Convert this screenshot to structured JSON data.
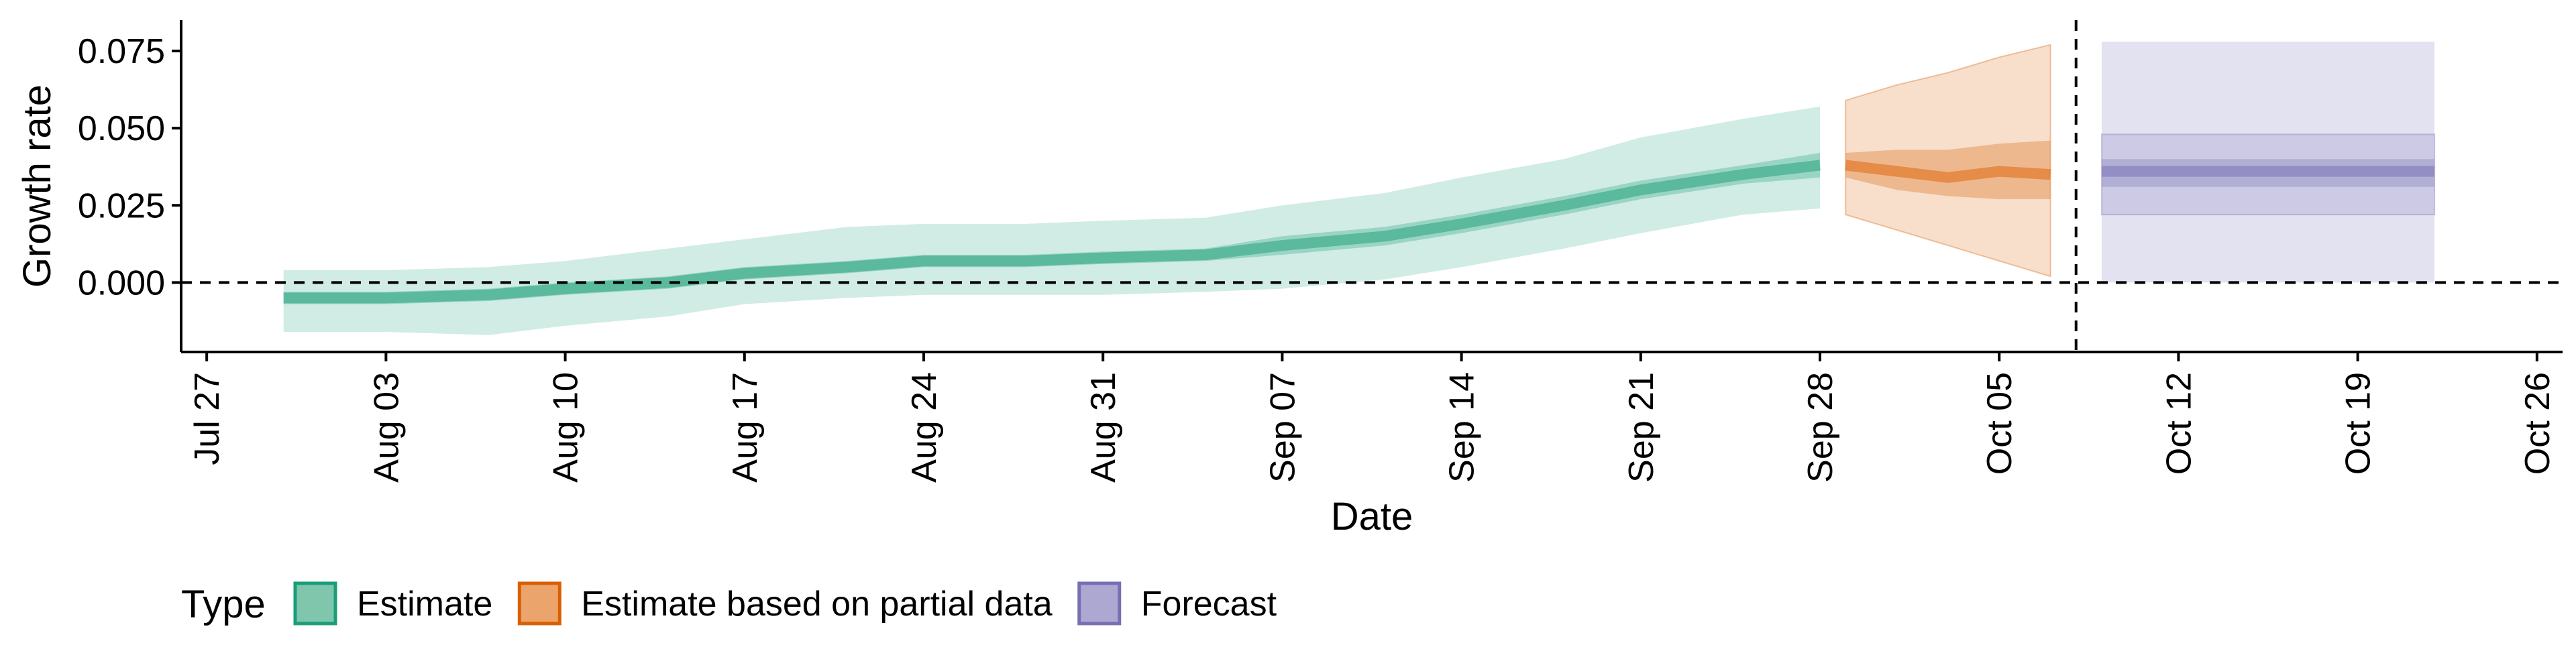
{
  "chart_data": {
    "type": "area",
    "xlabel": "Date",
    "ylabel": "Growth rate",
    "xlim": [
      "2020-07-26",
      "2020-10-27"
    ],
    "ylim": [
      -0.0225,
      0.085
    ],
    "x_ticks": [
      "2020-07-27",
      "2020-08-03",
      "2020-08-10",
      "2020-08-17",
      "2020-08-24",
      "2020-08-31",
      "2020-09-07",
      "2020-09-14",
      "2020-09-21",
      "2020-09-28",
      "2020-10-05",
      "2020-10-12",
      "2020-10-19",
      "2020-10-26"
    ],
    "x_tick_labels": [
      "Jul 27",
      "Aug 03",
      "Aug 10",
      "Aug 17",
      "Aug 24",
      "Aug 31",
      "Sep 07",
      "Sep 14",
      "Sep 21",
      "Sep 28",
      "Oct 05",
      "Oct 12",
      "Oct 19",
      "Oct 26"
    ],
    "y_ticks": [
      0.0,
      0.025,
      0.05,
      0.075
    ],
    "y_tick_labels": [
      "0.000",
      "0.025",
      "0.050",
      "0.075"
    ],
    "hline": 0,
    "vline": "2020-10-08",
    "grid": false,
    "legend": {
      "title": "Type",
      "position": "bottom-left",
      "entries": [
        {
          "label": "Estimate",
          "fill": "#7fc6ad",
          "stroke": "#1b9e77"
        },
        {
          "label": "Estimate based on partial data",
          "fill": "#eba46b",
          "stroke": "#d95f02"
        },
        {
          "label": "Forecast",
          "fill": "#ada8d1",
          "stroke": "#7570b3"
        }
      ]
    },
    "series": [
      {
        "name": "Estimate",
        "color": "#1b9e77",
        "x": [
          "2020-07-30",
          "2020-08-03",
          "2020-08-07",
          "2020-08-10",
          "2020-08-14",
          "2020-08-17",
          "2020-08-21",
          "2020-08-24",
          "2020-08-28",
          "2020-08-31",
          "2020-09-04",
          "2020-09-07",
          "2020-09-11",
          "2020-09-14",
          "2020-09-18",
          "2020-09-21",
          "2020-09-25",
          "2020-09-28"
        ],
        "median": [
          -0.005,
          -0.005,
          -0.004,
          -0.002,
          0.0,
          0.003,
          0.005,
          0.007,
          0.007,
          0.008,
          0.009,
          0.012,
          0.015,
          0.019,
          0.025,
          0.03,
          0.035,
          0.038
        ],
        "lower_50": [
          -0.007,
          -0.007,
          -0.006,
          -0.004,
          -0.002,
          0.001,
          0.003,
          0.005,
          0.005,
          0.006,
          0.007,
          0.009,
          0.012,
          0.016,
          0.022,
          0.027,
          0.032,
          0.034
        ],
        "upper_50": [
          -0.003,
          -0.003,
          -0.002,
          0.0,
          0.002,
          0.005,
          0.007,
          0.009,
          0.009,
          0.01,
          0.011,
          0.015,
          0.018,
          0.022,
          0.028,
          0.033,
          0.038,
          0.042
        ],
        "lower_90": [
          -0.016,
          -0.016,
          -0.017,
          -0.014,
          -0.011,
          -0.007,
          -0.005,
          -0.004,
          -0.004,
          -0.004,
          -0.003,
          -0.002,
          0.001,
          0.005,
          0.011,
          0.016,
          0.022,
          0.024
        ],
        "upper_90": [
          0.004,
          0.004,
          0.005,
          0.007,
          0.011,
          0.014,
          0.018,
          0.019,
          0.019,
          0.02,
          0.021,
          0.025,
          0.029,
          0.034,
          0.04,
          0.047,
          0.053,
          0.057
        ]
      },
      {
        "name": "Estimate based on partial data",
        "color": "#d95f02",
        "x": [
          "2020-09-29",
          "2020-10-01",
          "2020-10-03",
          "2020-10-05",
          "2020-10-07"
        ],
        "median": [
          0.038,
          0.036,
          0.034,
          0.036,
          0.035
        ],
        "lower_50": [
          0.034,
          0.03,
          0.028,
          0.027,
          0.027
        ],
        "upper_50": [
          0.042,
          0.043,
          0.043,
          0.045,
          0.046
        ],
        "lower_90": [
          0.022,
          0.017,
          0.012,
          0.007,
          0.002
        ],
        "upper_90": [
          0.059,
          0.064,
          0.068,
          0.073,
          0.077
        ]
      },
      {
        "name": "Forecast",
        "color": "#7570b3",
        "x": [
          "2020-10-09",
          "2020-10-22"
        ],
        "median": [
          0.036,
          0.036
        ],
        "lower_50": [
          0.031,
          0.031
        ],
        "upper_50": [
          0.04,
          0.04
        ],
        "lower_90": [
          0.022,
          0.022
        ],
        "upper_90": [
          0.048,
          0.048
        ],
        "lower_outer": [
          0.0,
          0.0
        ],
        "upper_outer": [
          0.078,
          0.078
        ]
      }
    ]
  }
}
